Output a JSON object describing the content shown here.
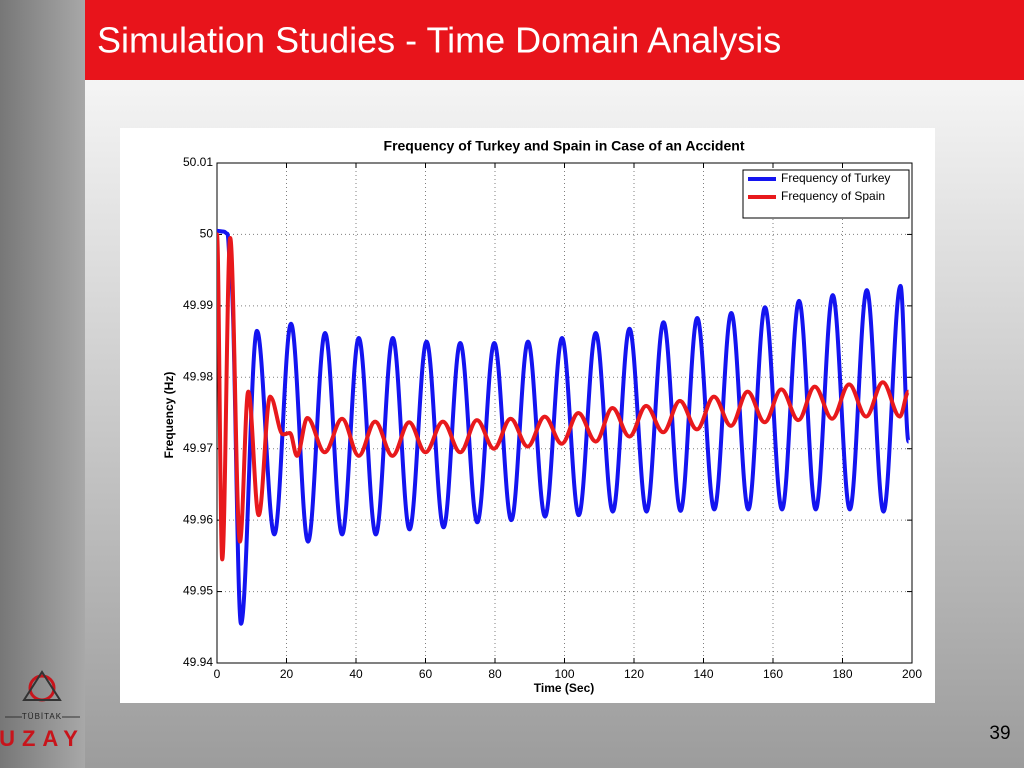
{
  "slide": {
    "title": "Simulation Studies - Time Domain Analysis",
    "page_number": 39
  },
  "logo": {
    "org": "TÜBİTAK",
    "unit": "UZAY"
  },
  "chart_data": {
    "type": "line",
    "title": "Frequency of Turkey and Spain in Case of an Accident",
    "xlabel": "Time (Sec)",
    "ylabel": "Frequency (Hz)",
    "xlim": [
      0,
      200
    ],
    "xticks": [
      0,
      20,
      40,
      60,
      80,
      100,
      120,
      140,
      160,
      180,
      200
    ],
    "ylim": [
      49.94,
      50.01
    ],
    "yticks": [
      49.94,
      49.95,
      49.96,
      49.97,
      49.98,
      49.99,
      50,
      50.01
    ],
    "grid": true,
    "legend": "upper right",
    "series": [
      {
        "name": "Frequency of Turkey",
        "color": "#1414f0",
        "x": [
          0,
          2,
          3,
          4,
          6.9,
          11.5,
          16.5,
          21.3,
          26.2,
          31.1,
          36,
          40.8,
          45.7,
          50.6,
          55.4,
          60.3,
          65.2,
          70,
          74.9,
          79.8,
          84.7,
          89.5,
          94.4,
          99.3,
          104.1,
          109,
          113.9,
          118.7,
          123.6,
          128.5,
          133.4,
          138.2,
          143.1,
          148,
          152.9,
          157.7,
          162.6,
          167.5,
          172.3,
          177.2,
          182.1,
          187,
          191.8,
          196.7,
          199
        ],
        "values": [
          50.0005,
          50.0004,
          50.0001,
          49.994,
          49.9455,
          49.9865,
          49.958,
          49.9875,
          49.957,
          49.9862,
          49.958,
          49.9855,
          49.958,
          49.9855,
          49.9587,
          49.985,
          49.959,
          49.9848,
          49.9597,
          49.9848,
          49.96,
          49.985,
          49.9605,
          49.9855,
          49.9607,
          49.9862,
          49.9612,
          49.9868,
          49.9612,
          49.9877,
          49.9613,
          49.9883,
          49.9615,
          49.989,
          49.9615,
          49.9898,
          49.9615,
          49.9907,
          49.9615,
          49.9915,
          49.9615,
          49.9922,
          49.9612,
          49.9928,
          49.971
        ]
      },
      {
        "name": "Frequency of Spain",
        "color": "#e8191c",
        "x": [
          0,
          1.5,
          3.8,
          6.6,
          9,
          12,
          15.3,
          19,
          21,
          23,
          26,
          31,
          36,
          40.8,
          45.5,
          50.5,
          55.3,
          60,
          65,
          70,
          74.8,
          79.7,
          84.5,
          89.4,
          94.3,
          99.2,
          104,
          109,
          113.8,
          118.7,
          123.5,
          128.4,
          133.2,
          138.1,
          143,
          147.9,
          152.7,
          157.6,
          162.4,
          167.3,
          172,
          177,
          181.9,
          186.8,
          191.6,
          196.5,
          199
        ],
        "values": [
          50,
          49.9545,
          49.9995,
          49.957,
          49.978,
          49.9607,
          49.9773,
          49.972,
          49.9722,
          49.969,
          49.9743,
          49.9695,
          49.9742,
          49.969,
          49.9738,
          49.969,
          49.9737,
          49.9695,
          49.9738,
          49.9695,
          49.974,
          49.97,
          49.9742,
          49.9703,
          49.9745,
          49.9707,
          49.975,
          49.971,
          49.9757,
          49.9717,
          49.976,
          49.9723,
          49.9767,
          49.9727,
          49.9773,
          49.9732,
          49.978,
          49.9737,
          49.9783,
          49.974,
          49.9787,
          49.9742,
          49.979,
          49.9745,
          49.9793,
          49.9745,
          49.978
        ]
      }
    ]
  }
}
